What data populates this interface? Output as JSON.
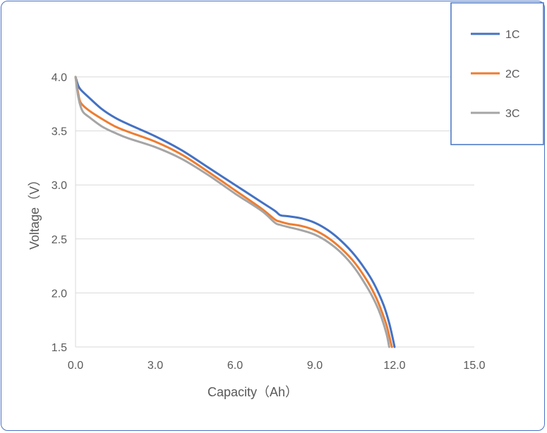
{
  "chart_data": {
    "type": "line",
    "xlabel": "Capacity（Ah）",
    "ylabel": "Voltage（V）",
    "xlim": [
      0,
      15
    ],
    "ylim": [
      1.5,
      4.0
    ],
    "xticks": [
      "0.0",
      "3.0",
      "6.0",
      "9.0",
      "12.0",
      "15.0"
    ],
    "yticks": [
      "1.5",
      "2.0",
      "2.5",
      "3.0",
      "3.5",
      "4.0"
    ],
    "grid": "horizontal",
    "legend_position": "top-right",
    "series": [
      {
        "name": "1C",
        "color": "#4472c4",
        "x": [
          0.0,
          0.1,
          0.2,
          0.5,
          1.0,
          1.5,
          2.0,
          3.0,
          4.0,
          5.0,
          6.0,
          7.0,
          7.5,
          7.7,
          8.0,
          8.5,
          9.0,
          9.5,
          10.0,
          10.5,
          11.0,
          11.3,
          11.6,
          11.8,
          11.95,
          12.0
        ],
        "values": [
          4.0,
          3.92,
          3.88,
          3.81,
          3.7,
          3.62,
          3.56,
          3.45,
          3.32,
          3.16,
          3.0,
          2.84,
          2.76,
          2.72,
          2.71,
          2.69,
          2.65,
          2.58,
          2.48,
          2.35,
          2.18,
          2.05,
          1.88,
          1.72,
          1.56,
          1.5
        ]
      },
      {
        "name": "2C",
        "color": "#ed7d31",
        "x": [
          0.0,
          0.1,
          0.2,
          0.5,
          1.0,
          1.5,
          2.0,
          3.0,
          4.0,
          5.0,
          6.0,
          7.0,
          7.5,
          7.7,
          8.0,
          8.5,
          9.0,
          9.5,
          10.0,
          10.5,
          11.0,
          11.3,
          11.5,
          11.7,
          11.85,
          11.9
        ],
        "values": [
          4.0,
          3.85,
          3.76,
          3.69,
          3.61,
          3.54,
          3.49,
          3.4,
          3.28,
          3.12,
          2.95,
          2.78,
          2.68,
          2.66,
          2.64,
          2.62,
          2.58,
          2.51,
          2.41,
          2.28,
          2.1,
          1.96,
          1.84,
          1.7,
          1.55,
          1.5
        ]
      },
      {
        "name": "3C",
        "color": "#a5a5a5",
        "x": [
          0.0,
          0.1,
          0.2,
          0.3,
          0.5,
          1.0,
          1.5,
          2.0,
          3.0,
          4.0,
          5.0,
          6.0,
          7.0,
          7.5,
          7.7,
          8.0,
          8.5,
          9.0,
          9.5,
          10.0,
          10.5,
          11.0,
          11.3,
          11.5,
          11.7,
          11.8
        ],
        "values": [
          4.0,
          3.82,
          3.72,
          3.67,
          3.63,
          3.54,
          3.48,
          3.43,
          3.35,
          3.24,
          3.09,
          2.92,
          2.76,
          2.65,
          2.63,
          2.61,
          2.58,
          2.54,
          2.47,
          2.37,
          2.23,
          2.04,
          1.9,
          1.78,
          1.62,
          1.5
        ]
      }
    ]
  }
}
